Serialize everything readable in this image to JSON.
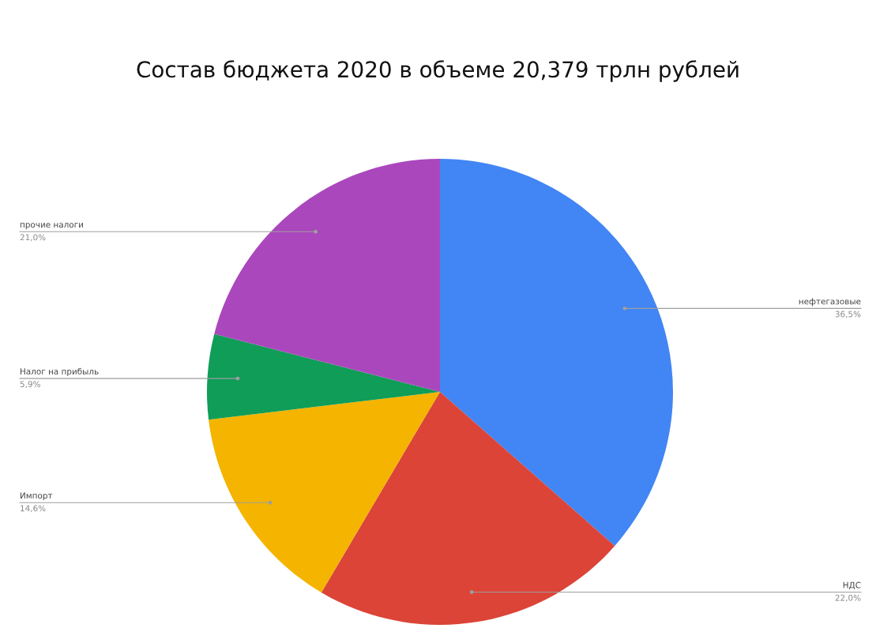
{
  "chart_data": {
    "type": "pie",
    "title": "Состав бюджета 2020 в объеме 20,379 трлн рублей",
    "categories": [
      "нефтегазовые",
      "НДС",
      "Импорт",
      "Налог на прибыль",
      "прочие налоги"
    ],
    "values": [
      36.5,
      22.0,
      14.6,
      5.9,
      21.0
    ],
    "value_labels": [
      "36,5%",
      "22,0%",
      "14,6%",
      "5,9%",
      "21,0%"
    ],
    "colors": [
      "#4285f4",
      "#db4437",
      "#f4b400",
      "#0f9d58",
      "#ab47bc"
    ],
    "legend": false
  }
}
